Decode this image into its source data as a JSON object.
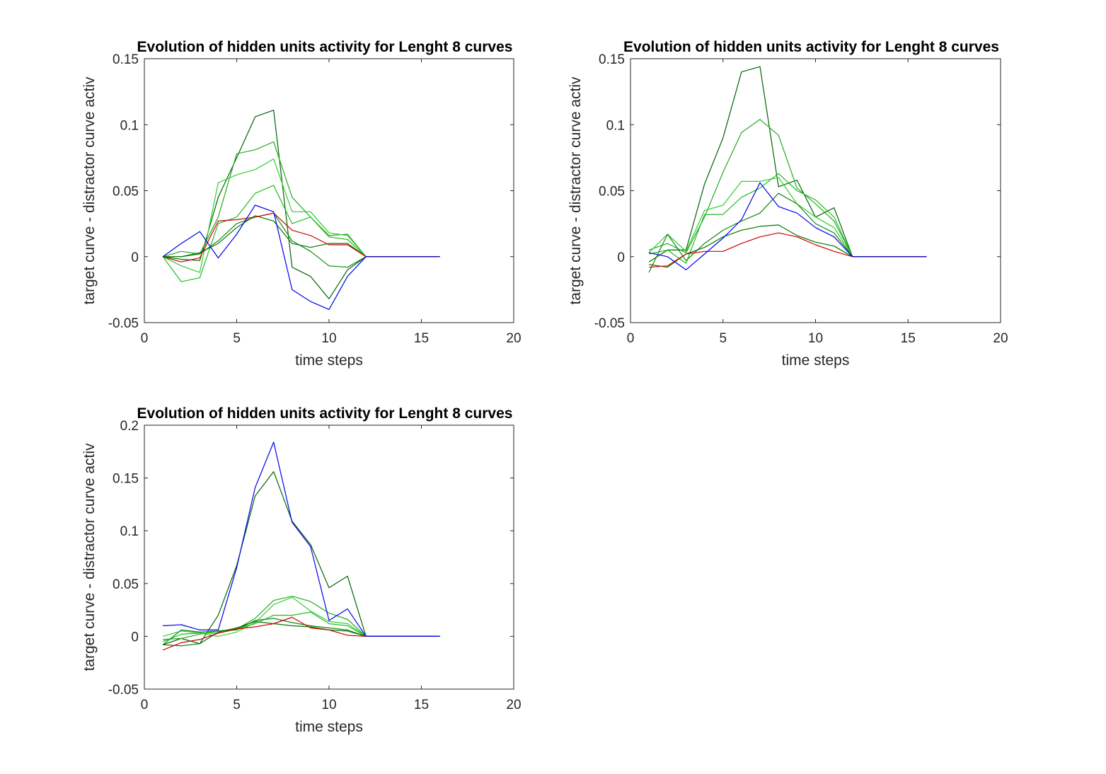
{
  "figure": {
    "colors": {
      "background": "#ffffff",
      "axes": "#262626"
    }
  },
  "chart_data": [
    {
      "type": "line",
      "title": "Evolution of hidden units activity for Lenght 8 curves",
      "xlabel": "time steps",
      "ylabel": "target curve - distractor curve activ",
      "xlim": [
        0,
        20
      ],
      "ylim": [
        -0.05,
        0.15
      ],
      "xticks": [
        0,
        5,
        10,
        15,
        20
      ],
      "yticks": [
        -0.05,
        0,
        0.05,
        0.1,
        0.15
      ],
      "xtick_labels": [
        "0",
        "5",
        "10",
        "15",
        "20"
      ],
      "ytick_labels": [
        "-0.05",
        "0",
        "0.05",
        "0.1",
        "0.15"
      ],
      "grid": false,
      "x": [
        1,
        2,
        3,
        4,
        5,
        6,
        7,
        8,
        9,
        10,
        11,
        12,
        13,
        14,
        15,
        16
      ],
      "series": [
        {
          "color": "#006400",
          "values": [
            0,
            -0.002,
            -0.003,
            0.045,
            0.075,
            0.106,
            0.111,
            -0.008,
            -0.015,
            -0.032,
            -0.01,
            0,
            0,
            0,
            0,
            0
          ]
        },
        {
          "color": "#22aa22",
          "values": [
            0,
            0.004,
            0.002,
            0.03,
            0.078,
            0.081,
            0.087,
            0.045,
            0.03,
            0.016,
            0.017,
            0,
            0,
            0,
            0,
            0
          ]
        },
        {
          "color": "#33cc33",
          "values": [
            0,
            -0.007,
            -0.012,
            0.056,
            0.062,
            0.066,
            0.074,
            0.034,
            0.034,
            0.018,
            0.016,
            0,
            0,
            0,
            0,
            0
          ]
        },
        {
          "color": "#22bb22",
          "values": [
            0,
            -0.019,
            -0.016,
            0.025,
            0.03,
            0.048,
            0.054,
            0.025,
            0.03,
            0.015,
            0.013,
            0,
            0,
            0,
            0,
            0
          ]
        },
        {
          "color": "#118811",
          "values": [
            0,
            0,
            0.002,
            0.012,
            0.025,
            0.03,
            0.033,
            0.012,
            0.004,
            -0.007,
            -0.008,
            0,
            0,
            0,
            0,
            0
          ]
        },
        {
          "color": "#007700",
          "values": [
            0,
            0,
            0.003,
            0.01,
            0.022,
            0.031,
            0.027,
            0.01,
            0.007,
            0.01,
            0.01,
            0,
            0,
            0,
            0,
            0
          ]
        },
        {
          "color": "#cc0000",
          "values": [
            0,
            -0.004,
            -0.001,
            0.027,
            0.028,
            0.03,
            0.033,
            0.02,
            0.016,
            0.009,
            0.009,
            0,
            0,
            0,
            0,
            0
          ]
        },
        {
          "color": "#0000ee",
          "values": [
            0,
            0.01,
            0.019,
            -0.001,
            0.017,
            0.039,
            0.034,
            -0.025,
            -0.034,
            -0.04,
            -0.015,
            0,
            0,
            0,
            0,
            0
          ]
        }
      ]
    },
    {
      "type": "line",
      "title": "Evolution of hidden units activity for Lenght 8 curves",
      "xlabel": "time steps",
      "ylabel": "target curve - distractor curve activ",
      "xlim": [
        0,
        20
      ],
      "ylim": [
        -0.05,
        0.15
      ],
      "xticks": [
        0,
        5,
        10,
        15,
        20
      ],
      "yticks": [
        -0.05,
        0,
        0.05,
        0.1,
        0.15
      ],
      "xtick_labels": [
        "0",
        "5",
        "10",
        "15",
        "20"
      ],
      "ytick_labels": [
        "-0.05",
        "0",
        "0.05",
        "0.1",
        "0.15"
      ],
      "grid": false,
      "x": [
        1,
        2,
        3,
        4,
        5,
        6,
        7,
        8,
        9,
        10,
        11,
        12,
        13,
        14,
        15,
        16
      ],
      "series": [
        {
          "color": "#006400",
          "values": [
            -0.004,
            0.005,
            0.005,
            0.055,
            0.09,
            0.14,
            0.144,
            0.053,
            0.058,
            0.03,
            0.037,
            0,
            0,
            0,
            0,
            0
          ]
        },
        {
          "color": "#22aa22",
          "values": [
            0.005,
            0.01,
            0.003,
            0.03,
            0.064,
            0.094,
            0.104,
            0.092,
            0.052,
            0.04,
            0.027,
            0,
            0,
            0,
            0,
            0
          ]
        },
        {
          "color": "#33cc33",
          "values": [
            0.003,
            0.017,
            0.004,
            0.035,
            0.039,
            0.057,
            0.057,
            0.06,
            0.04,
            0.03,
            0.022,
            0,
            0,
            0,
            0,
            0
          ]
        },
        {
          "color": "#22bb22",
          "values": [
            0.002,
            0.005,
            -0.005,
            0.032,
            0.032,
            0.045,
            0.052,
            0.063,
            0.05,
            0.043,
            0.03,
            0,
            0,
            0,
            0,
            0
          ]
        },
        {
          "color": "#118811",
          "values": [
            -0.012,
            0.017,
            -0.003,
            0.01,
            0.02,
            0.027,
            0.033,
            0.048,
            0.04,
            0.025,
            0.018,
            0,
            0,
            0,
            0,
            0
          ]
        },
        {
          "color": "#007700",
          "values": [
            -0.006,
            -0.008,
            0.002,
            0.007,
            0.015,
            0.02,
            0.023,
            0.024,
            0.016,
            0.011,
            0.008,
            0,
            0,
            0,
            0,
            0
          ]
        },
        {
          "color": "#cc0000",
          "values": [
            -0.008,
            -0.007,
            0.002,
            0.004,
            0.004,
            0.01,
            0.015,
            0.018,
            0.015,
            0.009,
            0.004,
            0,
            0,
            0,
            0,
            0
          ]
        },
        {
          "color": "#0000ee",
          "values": [
            0.003,
            0,
            -0.01,
            0.002,
            0.014,
            0.028,
            0.056,
            0.038,
            0.033,
            0.022,
            0.015,
            0,
            0,
            0,
            0,
            0
          ]
        }
      ]
    },
    {
      "type": "line",
      "title": "Evolution of hidden units activity for Lenght 8 curves",
      "xlabel": "time steps",
      "ylabel": "target curve - distractor curve activ",
      "xlim": [
        0,
        20
      ],
      "ylim": [
        -0.05,
        0.2
      ],
      "xticks": [
        0,
        5,
        10,
        15,
        20
      ],
      "yticks": [
        -0.05,
        0,
        0.05,
        0.1,
        0.15,
        0.2
      ],
      "xtick_labels": [
        "0",
        "5",
        "10",
        "15",
        "20"
      ],
      "ytick_labels": [
        "-0.05",
        "0",
        "0.05",
        "0.1",
        "0.15",
        "0.2"
      ],
      "grid": false,
      "x": [
        1,
        2,
        3,
        4,
        5,
        6,
        7,
        8,
        9,
        10,
        11,
        12,
        13,
        14,
        15,
        16
      ],
      "series": [
        {
          "color": "#006400",
          "values": [
            -0.008,
            -0.002,
            -0.007,
            0.02,
            0.067,
            0.133,
            0.156,
            0.109,
            0.087,
            0.046,
            0.057,
            0,
            0,
            0,
            0,
            0
          ]
        },
        {
          "color": "#22aa22",
          "values": [
            -0.003,
            -0.002,
            0.002,
            0.005,
            0.007,
            0.017,
            0.034,
            0.038,
            0.033,
            0.022,
            0.016,
            0,
            0,
            0,
            0,
            0
          ]
        },
        {
          "color": "#33cc33",
          "values": [
            0,
            0.005,
            0.003,
            0,
            0.004,
            0.013,
            0.03,
            0.037,
            0.024,
            0.014,
            0.012,
            0,
            0,
            0,
            0,
            0
          ]
        },
        {
          "color": "#22bb22",
          "values": [
            -0.005,
            0.002,
            0.003,
            0.003,
            0.007,
            0.012,
            0.02,
            0.02,
            0.023,
            0.012,
            0.01,
            0,
            0,
            0,
            0,
            0
          ]
        },
        {
          "color": "#118811",
          "values": [
            -0.008,
            0.006,
            0.004,
            0.005,
            0.006,
            0.015,
            0.017,
            0.013,
            0.01,
            0.008,
            0.006,
            0,
            0,
            0,
            0,
            0
          ]
        },
        {
          "color": "#007700",
          "values": [
            -0.008,
            -0.009,
            -0.007,
            0.004,
            0.008,
            0.014,
            0.012,
            0.01,
            0.009,
            0.006,
            0.005,
            0,
            0,
            0,
            0,
            0
          ]
        },
        {
          "color": "#cc0000",
          "values": [
            -0.013,
            -0.006,
            -0.003,
            0.003,
            0.007,
            0.009,
            0.012,
            0.018,
            0.008,
            0.006,
            0.001,
            0,
            0,
            0,
            0,
            0
          ]
        },
        {
          "color": "#0000ee",
          "values": [
            0.01,
            0.011,
            0.006,
            0.006,
            0.065,
            0.141,
            0.184,
            0.108,
            0.085,
            0.015,
            0.026,
            0,
            0,
            0,
            0,
            0
          ]
        }
      ]
    }
  ]
}
